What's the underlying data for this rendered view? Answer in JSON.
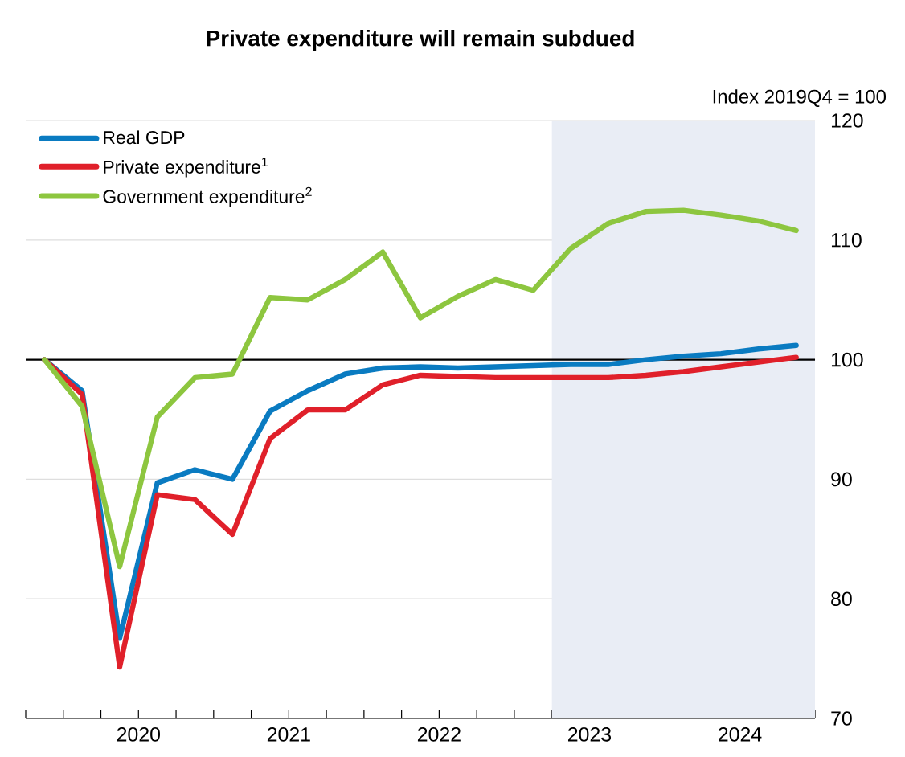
{
  "chart_data": {
    "type": "line",
    "title": "Private expenditure will remain subdued",
    "ylabel": "Index 2019Q4 = 100",
    "x": [
      2019.875,
      2020.125,
      2020.375,
      2020.625,
      2020.875,
      2021.125,
      2021.375,
      2021.625,
      2021.875,
      2022.125,
      2022.375,
      2022.625,
      2022.875,
      2023.125,
      2023.375,
      2023.625,
      2023.875,
      2024.125,
      2024.375,
      2024.625,
      2024.875
    ],
    "series": [
      {
        "name": "Real GDP",
        "color": "#0a7bc1",
        "values": [
          100,
          97.4,
          76.7,
          89.7,
          90.8,
          90.0,
          95.7,
          97.4,
          98.8,
          99.3,
          99.4,
          99.3,
          99.4,
          99.5,
          99.6,
          99.6,
          100.0,
          100.3,
          100.5,
          100.9,
          101.2
        ]
      },
      {
        "name": "Private expenditure$^{1}$",
        "color": "#e0202a",
        "values": [
          100,
          97.1,
          74.3,
          88.7,
          88.3,
          85.4,
          93.4,
          95.8,
          95.8,
          97.9,
          98.7,
          98.6,
          98.5,
          98.5,
          98.5,
          98.5,
          98.7,
          99.0,
          99.4,
          99.8,
          100.2
        ]
      },
      {
        "name": "Government expenditure$^{2}$",
        "color": "#8dc63f",
        "values": [
          100,
          96.1,
          82.7,
          95.2,
          98.5,
          98.8,
          105.2,
          105.0,
          106.7,
          109.0,
          103.5,
          105.3,
          106.7,
          105.8,
          109.3,
          111.4,
          112.4,
          112.5,
          112.1,
          111.6,
          110.8
        ]
      }
    ],
    "xlim": [
      2019.75,
      2025.0
    ],
    "ylim": [
      70,
      120
    ],
    "xticks": [
      {
        "value": 2019.75,
        "label": null
      },
      {
        "value": 2020.0,
        "label": null
      },
      {
        "value": 2020.25,
        "label": null
      },
      {
        "value": 2020.5,
        "label": "2020"
      },
      {
        "value": 2020.75,
        "label": null
      },
      {
        "value": 2021.0,
        "label": null
      },
      {
        "value": 2021.25,
        "label": null
      },
      {
        "value": 2021.5,
        "label": "2021"
      },
      {
        "value": 2021.75,
        "label": null
      },
      {
        "value": 2022.0,
        "label": null
      },
      {
        "value": 2022.25,
        "label": null
      },
      {
        "value": 2022.5,
        "label": "2022"
      },
      {
        "value": 2022.75,
        "label": null
      },
      {
        "value": 2023.0,
        "label": null
      },
      {
        "value": 2023.25,
        "label": null
      },
      {
        "value": 2023.5,
        "label": "2023"
      },
      {
        "value": 2023.75,
        "label": null
      },
      {
        "value": 2024.0,
        "label": null
      },
      {
        "value": 2024.25,
        "label": null
      },
      {
        "value": 2024.5,
        "label": "2024"
      },
      {
        "value": 2024.75,
        "label": null
      },
      {
        "value": 2025.0,
        "label": null
      }
    ],
    "yticks": [
      70,
      80,
      90,
      100,
      110,
      120
    ],
    "ref_lines": [
      {
        "axis": "y",
        "value": 100,
        "color": "#000000"
      }
    ],
    "bands": [
      {
        "axis": "x",
        "from": 2023.25,
        "to": 2025.0,
        "color": "#e9edf5"
      }
    ],
    "grid": "y",
    "legend": "top left"
  }
}
